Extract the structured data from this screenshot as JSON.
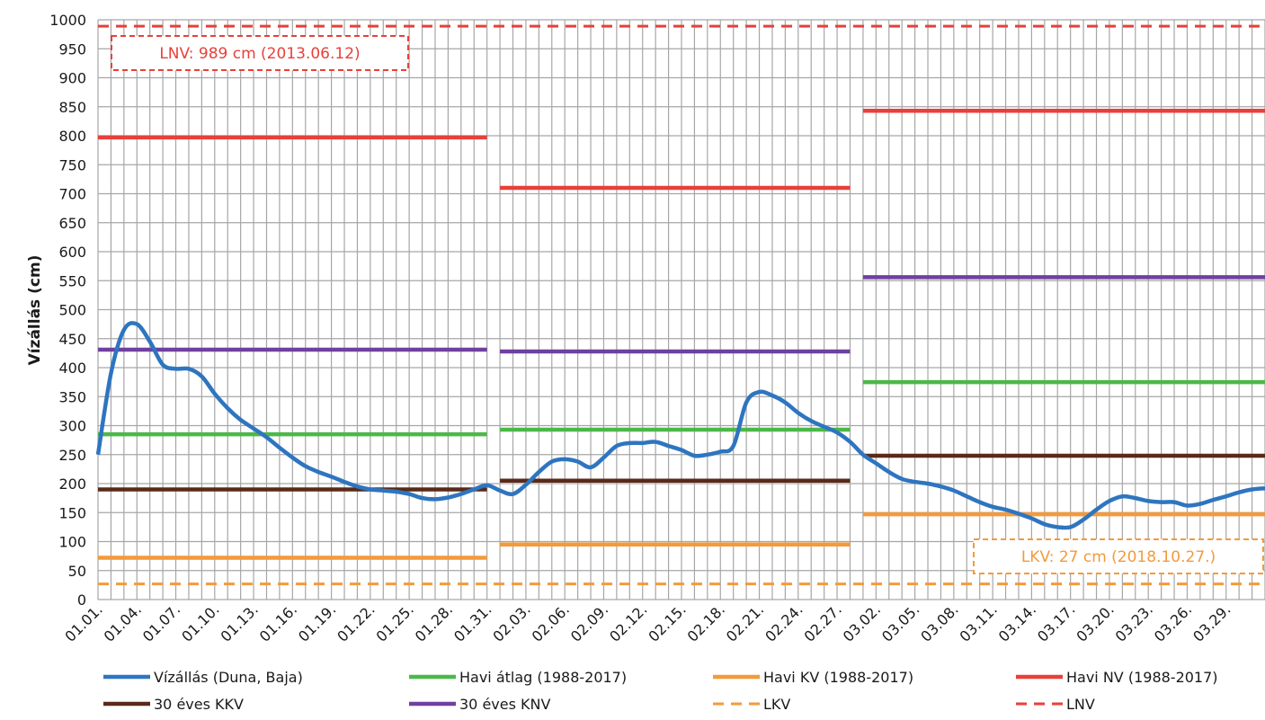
{
  "chart_data": {
    "type": "line",
    "ylabel": "Vízállás (cm)",
    "ylim": [
      0,
      1000
    ],
    "yticks": [
      0,
      50,
      100,
      150,
      200,
      250,
      300,
      350,
      400,
      450,
      500,
      550,
      600,
      650,
      700,
      750,
      800,
      850,
      900,
      950,
      1000
    ],
    "xlim": [
      1,
      91
    ],
    "x_tick_labels": [
      "01.01.",
      "01.04.",
      "01.07.",
      "01.10.",
      "01.13.",
      "01.16.",
      "01.19.",
      "01.22.",
      "01.25.",
      "01.28.",
      "01.31.",
      "02.03.",
      "02.06.",
      "02.09.",
      "02.12.",
      "02.15.",
      "02.18.",
      "02.21.",
      "02.24.",
      "02.27.",
      "03.02.",
      "03.05.",
      "03.08.",
      "03.11.",
      "03.14.",
      "03.17.",
      "03.20.",
      "03.23.",
      "03.26.",
      "03.29."
    ],
    "grid": true,
    "legend_position": "bottom",
    "series": [
      {
        "name": "Vízállás (Duna, Baja)",
        "color": "#2E75C0",
        "style": "solid",
        "x": [
          1,
          2,
          3,
          4,
          5,
          6,
          7,
          8,
          9,
          10,
          11,
          12,
          13,
          14,
          15,
          16,
          17,
          18,
          19,
          20,
          21,
          22,
          23,
          24,
          25,
          26,
          27,
          28,
          29,
          30,
          31,
          32,
          33,
          34,
          35,
          36,
          37,
          38,
          39,
          40,
          41,
          42,
          43,
          44,
          45,
          46,
          47,
          48,
          49,
          50,
          51,
          52,
          53,
          54,
          55,
          56,
          57,
          58,
          59,
          60,
          61,
          62,
          63,
          64,
          65,
          66,
          67,
          68,
          69,
          70,
          71,
          72,
          73,
          74,
          75,
          76,
          77,
          78,
          79,
          80,
          81,
          82,
          83,
          84,
          85,
          86,
          87,
          88,
          89,
          90,
          91
        ],
        "values": [
          250,
          390,
          465,
          475,
          445,
          405,
          398,
          398,
          385,
          355,
          330,
          310,
          295,
          280,
          262,
          245,
          230,
          220,
          212,
          203,
          195,
          190,
          188,
          186,
          182,
          175,
          173,
          176,
          182,
          190,
          197,
          188,
          182,
          198,
          220,
          238,
          242,
          238,
          228,
          245,
          265,
          270,
          270,
          272,
          265,
          258,
          248,
          250,
          255,
          265,
          340,
          358,
          352,
          340,
          322,
          308,
          298,
          288,
          272,
          250,
          235,
          220,
          208,
          203,
          200,
          195,
          188,
          178,
          168,
          160,
          155,
          148,
          140,
          130,
          125,
          125,
          138,
          155,
          170,
          178,
          175,
          170,
          168,
          168,
          162,
          165,
          172,
          178,
          185,
          190,
          192
        ]
      },
      {
        "name": "Havi átlag (1988-2017)",
        "color": "#4CB848",
        "style": "solid",
        "segments": [
          {
            "from": 1,
            "to": 31,
            "value": 285
          },
          {
            "from": 32,
            "to": 59,
            "value": 293
          },
          {
            "from": 60,
            "to": 91,
            "value": 375
          }
        ]
      },
      {
        "name": "Havi KV (1988-2017)",
        "color": "#F39A3C",
        "style": "solid",
        "segments": [
          {
            "from": 1,
            "to": 31,
            "value": 72
          },
          {
            "from": 32,
            "to": 59,
            "value": 95
          },
          {
            "from": 60,
            "to": 91,
            "value": 147
          }
        ]
      },
      {
        "name": "Havi NV (1988-2017)",
        "color": "#E8403A",
        "style": "solid",
        "segments": [
          {
            "from": 1,
            "to": 31,
            "value": 797
          },
          {
            "from": 32,
            "to": 59,
            "value": 710
          },
          {
            "from": 60,
            "to": 91,
            "value": 843
          }
        ]
      },
      {
        "name": "30 éves KKV",
        "color": "#5A2A18",
        "style": "solid",
        "segments": [
          {
            "from": 1,
            "to": 31,
            "value": 190
          },
          {
            "from": 32,
            "to": 59,
            "value": 205
          },
          {
            "from": 60,
            "to": 91,
            "value": 248
          }
        ]
      },
      {
        "name": "30 éves KNV",
        "color": "#7040A0",
        "style": "solid",
        "segments": [
          {
            "from": 1,
            "to": 31,
            "value": 431
          },
          {
            "from": 32,
            "to": 59,
            "value": 428
          },
          {
            "from": 60,
            "to": 91,
            "value": 556
          }
        ]
      },
      {
        "name": "LKV",
        "color": "#F39A3C",
        "style": "dashed",
        "value": 27
      },
      {
        "name": "LNV",
        "color": "#E8403A",
        "style": "dashed",
        "value": 989
      }
    ],
    "annotations": [
      {
        "text": "LNV: 989 cm (2013.06.12)",
        "color": "#E8403A"
      },
      {
        "text": "LKV: 27 cm (2018.10.27.)",
        "color": "#F39A3C"
      }
    ]
  }
}
